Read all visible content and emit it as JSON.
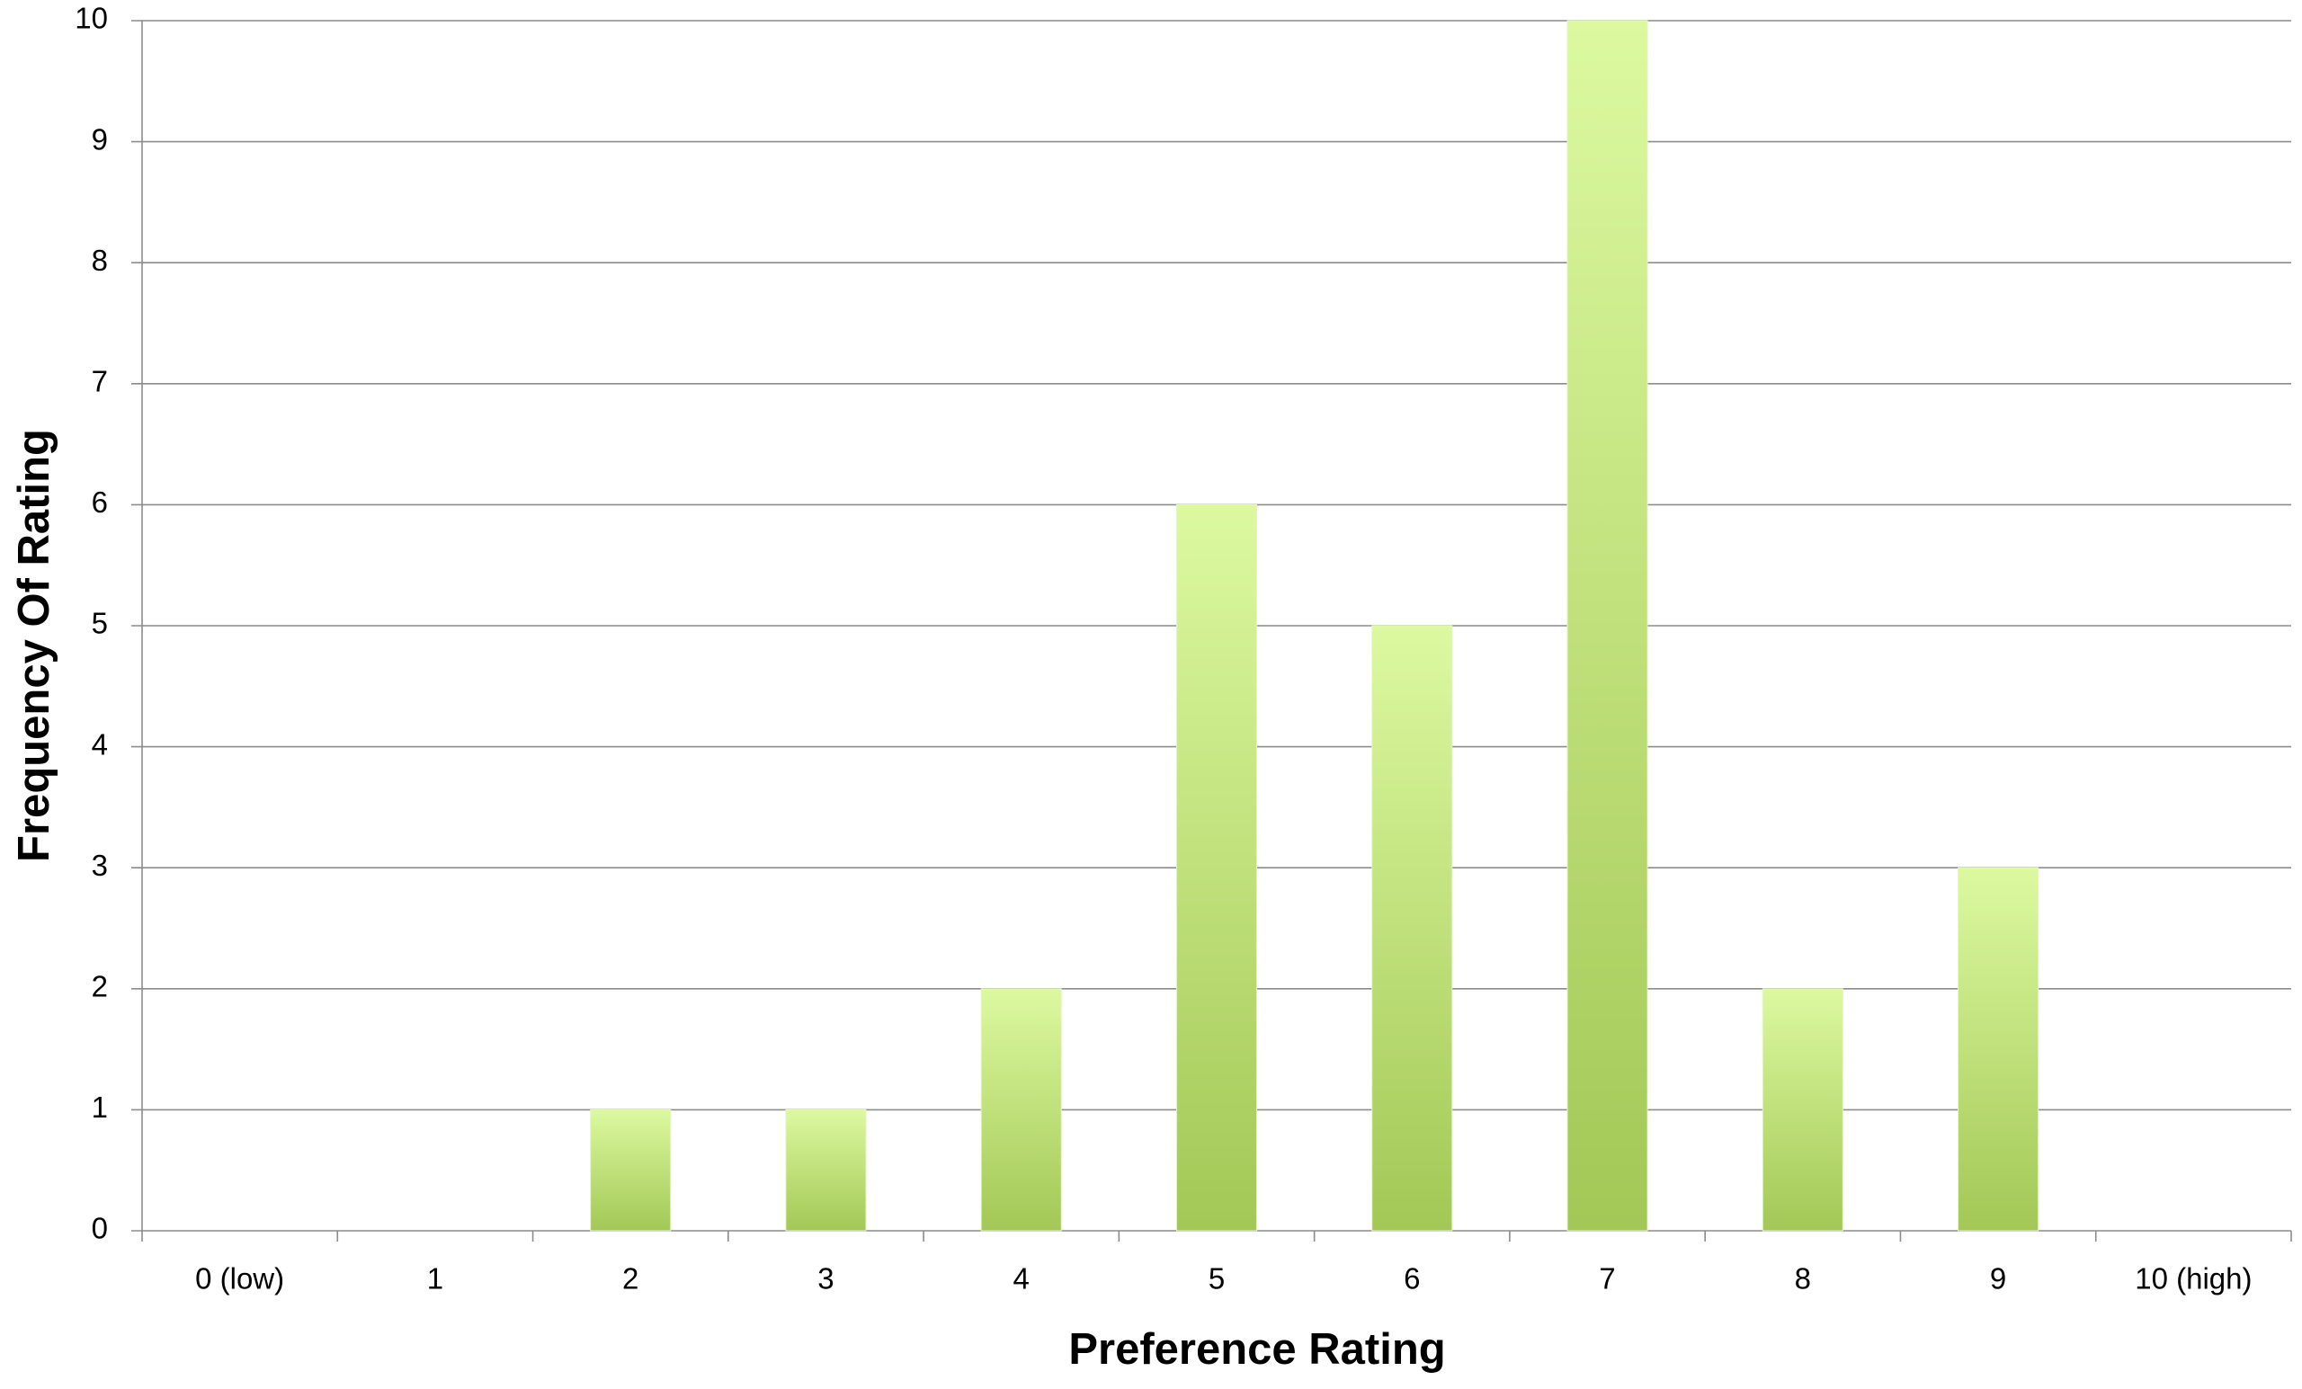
{
  "chart_data": {
    "type": "bar",
    "x_label": "Preference Rating",
    "y_label": "Frequency Of Rating",
    "categories": [
      "0 (low)",
      "1",
      "2",
      "3",
      "4",
      "5",
      "6",
      "7",
      "8",
      "9",
      "10 (high)"
    ],
    "values": [
      0,
      0,
      1,
      1,
      2,
      6,
      5,
      10,
      2,
      3,
      0
    ],
    "gradient": [
      "#dcf9a0",
      "#a3c856"
    ],
    "ylim": [
      0,
      10
    ],
    "yticks": [
      0,
      1,
      2,
      3,
      4,
      5,
      6,
      7,
      8,
      9,
      10
    ],
    "grid": true
  }
}
